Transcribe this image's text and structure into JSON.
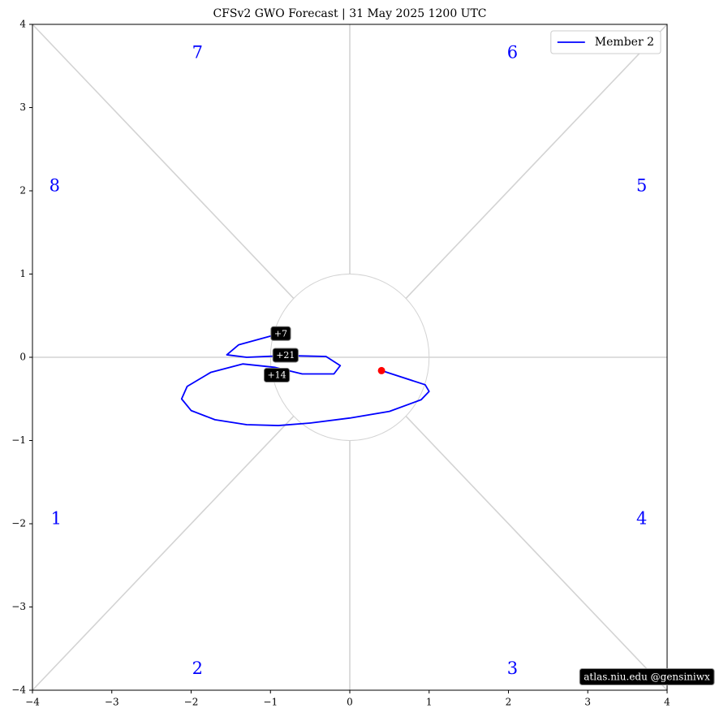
{
  "chart_data": {
    "type": "line",
    "title": "CFSv2 GWO Forecast   |   31  May  2025 1200 UTC",
    "xlim": [
      -4,
      4
    ],
    "ylim": [
      -4,
      4
    ],
    "xticks": [
      {
        "value": -4,
        "label": "−4"
      },
      {
        "value": -3,
        "label": "−3"
      },
      {
        "value": -2,
        "label": "−2"
      },
      {
        "value": -1,
        "label": "−1"
      },
      0,
      1,
      2,
      3,
      4
    ],
    "yticks": [
      {
        "value": -4,
        "label": "−4"
      },
      {
        "value": -3,
        "label": "−3"
      },
      {
        "value": -2,
        "label": "−2"
      },
      {
        "value": -1,
        "label": "−1"
      },
      0,
      1,
      2,
      3,
      4
    ],
    "legend": "upper right",
    "start_color": "#ff0000",
    "series": [
      {
        "name": "Member 2",
        "color": "#0000ff",
        "x": [
          0.4,
          0.95,
          1.0,
          0.9,
          0.5,
          0.0,
          -0.5,
          -0.9,
          -1.3,
          -1.7,
          -2.0,
          -2.12,
          -2.05,
          -1.75,
          -1.35,
          -0.95,
          -0.6,
          -0.2,
          -0.12,
          -0.3,
          -0.8,
          -1.3,
          -1.55,
          -1.4,
          -0.9
        ],
        "y": [
          -0.16,
          -0.33,
          -0.41,
          -0.51,
          -0.65,
          -0.73,
          -0.79,
          -0.82,
          -0.81,
          -0.75,
          -0.64,
          -0.5,
          -0.35,
          -0.18,
          -0.08,
          -0.12,
          -0.2,
          -0.2,
          -0.1,
          0.01,
          0.02,
          0.0,
          0.03,
          0.15,
          0.28
        ]
      }
    ],
    "annotations": [
      {
        "text": "+7",
        "x": -0.87,
        "y": 0.28
      },
      {
        "text": "+21",
        "x": -0.81,
        "y": 0.02
      },
      {
        "text": "+14",
        "x": -0.92,
        "y": -0.22
      }
    ],
    "phase_labels": [
      {
        "text": "1",
        "x": -3.7,
        "y": -1.95
      },
      {
        "text": "2",
        "x": -1.92,
        "y": -3.75
      },
      {
        "text": "3",
        "x": 2.05,
        "y": -3.75
      },
      {
        "text": "4",
        "x": 3.68,
        "y": -1.95
      },
      {
        "text": "5",
        "x": 3.68,
        "y": 2.05
      },
      {
        "text": "6",
        "x": 2.05,
        "y": 3.65
      },
      {
        "text": "7",
        "x": -1.92,
        "y": 3.65
      },
      {
        "text": "8",
        "x": -3.72,
        "y": 2.05
      }
    ],
    "watermark": "atlas.niu.edu  @gensiniwx"
  }
}
